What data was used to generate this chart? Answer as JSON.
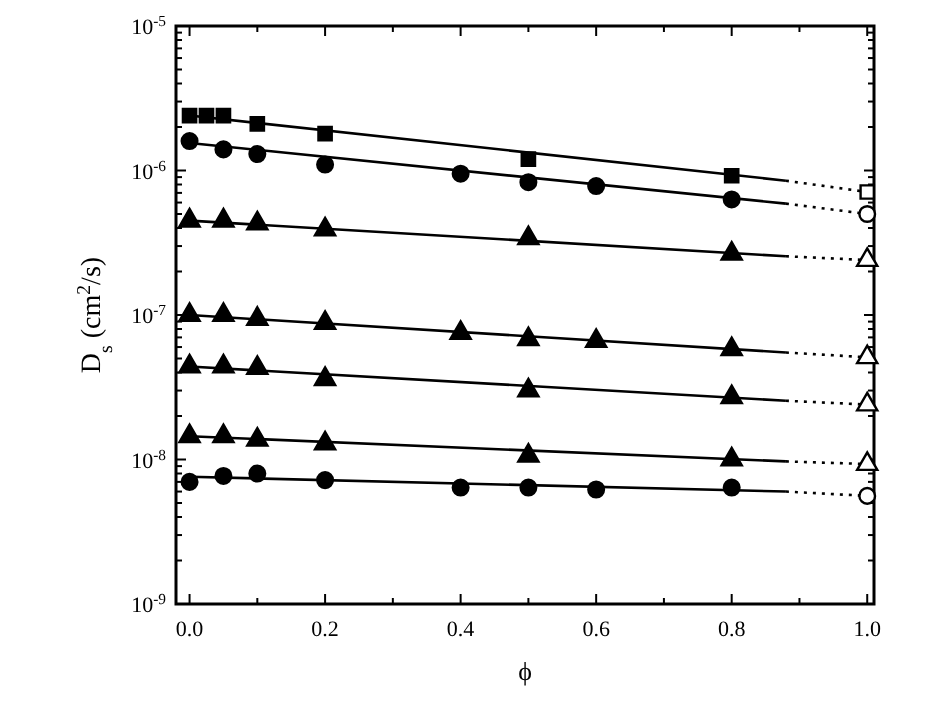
{
  "chart_data": {
    "type": "scatter",
    "xlabel": "ϕ",
    "ylabel": "D$_{s}$ (cm$^{2}$/s)",
    "log": "y",
    "grid": false,
    "xlim": [
      -0.02,
      1.01
    ],
    "ylim": [
      1e-09,
      1e-05
    ],
    "xticks": [
      {
        "value": 0,
        "label": "0.0"
      },
      {
        "value": 0.1,
        "label": null
      },
      {
        "value": 0.2,
        "label": "0.2"
      },
      {
        "value": 0.3,
        "label": null
      },
      {
        "value": 0.4,
        "label": "0.4"
      },
      {
        "value": 0.5,
        "label": null
      },
      {
        "value": 0.6,
        "label": "0.6"
      },
      {
        "value": 0.7,
        "label": null
      },
      {
        "value": 0.8,
        "label": "0.8"
      },
      {
        "value": 0.9,
        "label": null
      },
      {
        "value": 1,
        "label": "1.0"
      }
    ],
    "yticks": [
      {
        "value": 1e-09,
        "label": "10$^{-9}$"
      },
      {
        "value": 2e-09,
        "label": null
      },
      {
        "value": 3e-09,
        "label": null
      },
      {
        "value": 4e-09,
        "label": null
      },
      {
        "value": 5e-09,
        "label": null
      },
      {
        "value": 6e-09,
        "label": null
      },
      {
        "value": 7e-09,
        "label": null
      },
      {
        "value": 8e-09,
        "label": null
      },
      {
        "value": 9e-09,
        "label": null
      },
      {
        "value": 1e-08,
        "label": "10$^{-8}$"
      },
      {
        "value": 2e-08,
        "label": null
      },
      {
        "value": 3e-08,
        "label": null
      },
      {
        "value": 4e-08,
        "label": null
      },
      {
        "value": 5e-08,
        "label": null
      },
      {
        "value": 6e-08,
        "label": null
      },
      {
        "value": 7e-08,
        "label": null
      },
      {
        "value": 8e-08,
        "label": null
      },
      {
        "value": 9e-08,
        "label": null
      },
      {
        "value": 1e-07,
        "label": "10$^{-7}$"
      },
      {
        "value": 2e-07,
        "label": null
      },
      {
        "value": 3e-07,
        "label": null
      },
      {
        "value": 4e-07,
        "label": null
      },
      {
        "value": 5e-07,
        "label": null
      },
      {
        "value": 6e-07,
        "label": null
      },
      {
        "value": 7e-07,
        "label": null
      },
      {
        "value": 8e-07,
        "label": null
      },
      {
        "value": 9e-07,
        "label": null
      },
      {
        "value": 1e-06,
        "label": "10$^{-6}$"
      },
      {
        "value": 2e-06,
        "label": null
      },
      {
        "value": 3e-06,
        "label": null
      },
      {
        "value": 4e-06,
        "label": null
      },
      {
        "value": 5e-06,
        "label": null
      },
      {
        "value": 6e-06,
        "label": null
      },
      {
        "value": 7e-06,
        "label": null
      },
      {
        "value": 8e-06,
        "label": null
      },
      {
        "value": 9e-06,
        "label": null
      },
      {
        "value": 1e-05,
        "label": "10$^{-5}$"
      }
    ],
    "series": [
      {
        "type": "line",
        "line_style": "solid",
        "marker": "none",
        "color": "#000000",
        "x": [
          0,
          0.88
        ],
        "values": [
          2.4e-06,
          8.5e-07
        ]
      },
      {
        "type": "line",
        "line_style": "dotted",
        "marker": "none",
        "color": "#000000",
        "x": [
          0.88,
          1.0
        ],
        "values": [
          8.5e-07,
          7.1e-07
        ]
      },
      {
        "type": "scatter",
        "marker": "square",
        "color": "#000000",
        "x": [
          0,
          0.025,
          0.05,
          0.1,
          0.2,
          0.5,
          0.8
        ],
        "values": [
          2.4e-06,
          2.4e-06,
          2.4e-06,
          2.1e-06,
          1.8e-06,
          1.2e-06,
          9.2e-07
        ]
      },
      {
        "type": "scatter",
        "marker": "square",
        "color": "#ffffff",
        "x": [
          1.0
        ],
        "values": [
          7.1e-07
        ]
      },
      {
        "type": "line",
        "line_style": "solid",
        "marker": "none",
        "color": "#000000",
        "x": [
          0,
          0.88
        ],
        "values": [
          1.55e-06,
          5.9e-07
        ]
      },
      {
        "type": "line",
        "line_style": "dotted",
        "marker": "none",
        "color": "#000000",
        "x": [
          0.88,
          1.0
        ],
        "values": [
          5.9e-07,
          5e-07
        ]
      },
      {
        "type": "scatter",
        "marker": "circle",
        "color": "#000000",
        "x": [
          0,
          0.05,
          0.1,
          0.2,
          0.4,
          0.5,
          0.6,
          0.8
        ],
        "values": [
          1.6e-06,
          1.4e-06,
          1.3e-06,
          1.1e-06,
          9.5e-07,
          8.3e-07,
          7.8e-07,
          6.3e-07
        ]
      },
      {
        "type": "scatter",
        "marker": "circle",
        "color": "#ffffff",
        "x": [
          1.0
        ],
        "values": [
          5e-07
        ]
      },
      {
        "type": "line",
        "line_style": "solid",
        "marker": "none",
        "color": "#000000",
        "x": [
          0,
          0.88
        ],
        "values": [
          4.5e-07,
          2.55e-07
        ]
      },
      {
        "type": "line",
        "line_style": "dotted",
        "marker": "none",
        "color": "#000000",
        "x": [
          0.88,
          1.0
        ],
        "values": [
          2.55e-07,
          2.4e-07
        ]
      },
      {
        "type": "scatter",
        "marker": "triangle",
        "color": "#000000",
        "x": [
          0,
          0.05,
          0.1,
          0.2,
          0.5,
          0.8
        ],
        "values": [
          4.5e-07,
          4.5e-07,
          4.3e-07,
          3.9e-07,
          3.4e-07,
          2.65e-07
        ]
      },
      {
        "type": "scatter",
        "marker": "triangle",
        "color": "#ffffff",
        "x": [
          1.0
        ],
        "values": [
          2.4e-07
        ]
      },
      {
        "type": "line",
        "line_style": "solid",
        "marker": "none",
        "color": "#000000",
        "x": [
          0,
          0.88
        ],
        "values": [
          1e-07,
          5.5e-08
        ]
      },
      {
        "type": "line",
        "line_style": "dotted",
        "marker": "none",
        "color": "#000000",
        "x": [
          0.88,
          1.0
        ],
        "values": [
          5.5e-08,
          5.1e-08
        ]
      },
      {
        "type": "scatter",
        "marker": "triangle",
        "color": "#000000",
        "x": [
          0,
          0.05,
          0.1,
          0.2,
          0.4,
          0.5,
          0.6,
          0.8
        ],
        "values": [
          1e-07,
          1e-07,
          9.4e-08,
          8.8e-08,
          7.5e-08,
          6.8e-08,
          6.6e-08,
          5.8e-08
        ]
      },
      {
        "type": "scatter",
        "marker": "triangle",
        "color": "#ffffff",
        "x": [
          1.0
        ],
        "values": [
          5.1e-08
        ]
      },
      {
        "type": "line",
        "line_style": "solid",
        "marker": "none",
        "color": "#000000",
        "x": [
          0,
          0.88
        ],
        "values": [
          4.4e-08,
          2.55e-08
        ]
      },
      {
        "type": "line",
        "line_style": "dotted",
        "marker": "none",
        "color": "#000000",
        "x": [
          0.88,
          1.0
        ],
        "values": [
          2.55e-08,
          2.4e-08
        ]
      },
      {
        "type": "scatter",
        "marker": "triangle",
        "color": "#000000",
        "x": [
          0,
          0.05,
          0.1,
          0.2,
          0.5,
          0.8
        ],
        "values": [
          4.4e-08,
          4.4e-08,
          4.3e-08,
          3.6e-08,
          3e-08,
          2.7e-08
        ]
      },
      {
        "type": "scatter",
        "marker": "triangle",
        "color": "#ffffff",
        "x": [
          1.0
        ],
        "values": [
          2.4e-08
        ]
      },
      {
        "type": "line",
        "line_style": "solid",
        "marker": "none",
        "color": "#000000",
        "x": [
          0,
          0.88
        ],
        "values": [
          1.45e-08,
          9.7e-09
        ]
      },
      {
        "type": "line",
        "line_style": "dotted",
        "marker": "none",
        "color": "#000000",
        "x": [
          0.88,
          1.0
        ],
        "values": [
          9.7e-09,
          9.3e-09
        ]
      },
      {
        "type": "scatter",
        "marker": "triangle",
        "color": "#000000",
        "x": [
          0,
          0.05,
          0.1,
          0.2,
          0.5,
          0.8
        ],
        "values": [
          1.45e-08,
          1.45e-08,
          1.37e-08,
          1.29e-08,
          1.06e-08,
          1e-08
        ]
      },
      {
        "type": "scatter",
        "marker": "triangle",
        "color": "#ffffff",
        "x": [
          1.0
        ],
        "values": [
          9.3e-09
        ]
      },
      {
        "type": "line",
        "line_style": "solid",
        "marker": "none",
        "color": "#000000",
        "x": [
          0,
          0.88
        ],
        "values": [
          7.6e-09,
          6e-09
        ]
      },
      {
        "type": "line",
        "line_style": "dotted",
        "marker": "none",
        "color": "#000000",
        "x": [
          0.88,
          1.0
        ],
        "values": [
          6e-09,
          5.6e-09
        ]
      },
      {
        "type": "scatter",
        "marker": "circle",
        "color": "#000000",
        "x": [
          0,
          0.05,
          0.1,
          0.2,
          0.4,
          0.5,
          0.6,
          0.8
        ],
        "values": [
          7e-09,
          7.7e-09,
          8e-09,
          7.2e-09,
          6.4e-09,
          6.4e-09,
          6.2e-09,
          6.4e-09
        ]
      },
      {
        "type": "scatter",
        "marker": "circle",
        "color": "#ffffff",
        "x": [
          1.0
        ],
        "values": [
          5.6e-09
        ]
      }
    ]
  }
}
